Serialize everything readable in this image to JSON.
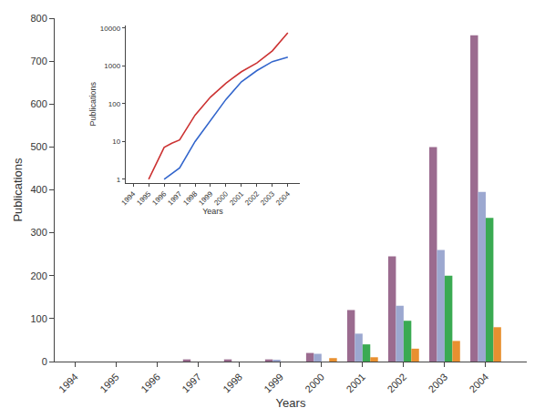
{
  "chart_data": [
    {
      "type": "bar",
      "x": [
        1994,
        1995,
        1996,
        1997,
        1998,
        1999,
        2000,
        2001,
        2002,
        2003,
        2004
      ],
      "series": [
        {
          "color": "#9b6b8f",
          "values": [
            0,
            0,
            0,
            5,
            5,
            5,
            20,
            120,
            245,
            500,
            760
          ]
        },
        {
          "color": "#9ca8d0",
          "values": [
            0,
            0,
            0,
            0,
            0,
            3,
            18,
            65,
            130,
            260,
            395
          ]
        },
        {
          "color": "#3aaa52",
          "values": [
            0,
            0,
            0,
            0,
            0,
            0,
            0,
            40,
            95,
            200,
            335
          ]
        },
        {
          "color": "#e89030",
          "values": [
            0,
            0,
            0,
            0,
            0,
            0,
            8,
            10,
            30,
            48,
            80
          ]
        }
      ],
      "xlabel": "Years",
      "ylabel": "Publications",
      "xlim": [
        1993.5,
        2005.0
      ],
      "xticks": [
        1994,
        1995,
        1996,
        1997,
        1998,
        1999,
        2000,
        2001,
        2002,
        2003,
        2004
      ],
      "ylim": [
        0,
        800
      ],
      "yticks": [
        0,
        100,
        200,
        300,
        400,
        500,
        600,
        700,
        800
      ],
      "grid": false
    },
    {
      "type": "line",
      "series": [
        {
          "color": "#cc3333",
          "x": [
            1995,
            1996,
            1996.5,
            1997,
            1998,
            1999,
            2000,
            2001,
            2002,
            2003,
            2004
          ],
          "values": [
            1,
            7,
            9,
            11,
            50,
            150,
            350,
            700,
            1200,
            2500,
            7500
          ]
        },
        {
          "color": "#3366cc",
          "x": [
            1996,
            1997,
            1998,
            1999,
            2000,
            2001,
            2002,
            2003,
            2004
          ],
          "values": [
            1,
            2,
            10,
            35,
            130,
            380,
            750,
            1300,
            1700
          ]
        }
      ],
      "xlabel": "Years",
      "ylabel": "Publications",
      "xlim": [
        1993.5,
        2004.8
      ],
      "xticks": [
        1994,
        1995,
        1996,
        1997,
        1998,
        1999,
        2000,
        2001,
        2002,
        2003,
        2004
      ],
      "ylim": [
        0.8,
        12000
      ],
      "yticks": [
        1,
        10,
        100,
        1000,
        10000
      ],
      "log": "y",
      "grid": false
    }
  ]
}
